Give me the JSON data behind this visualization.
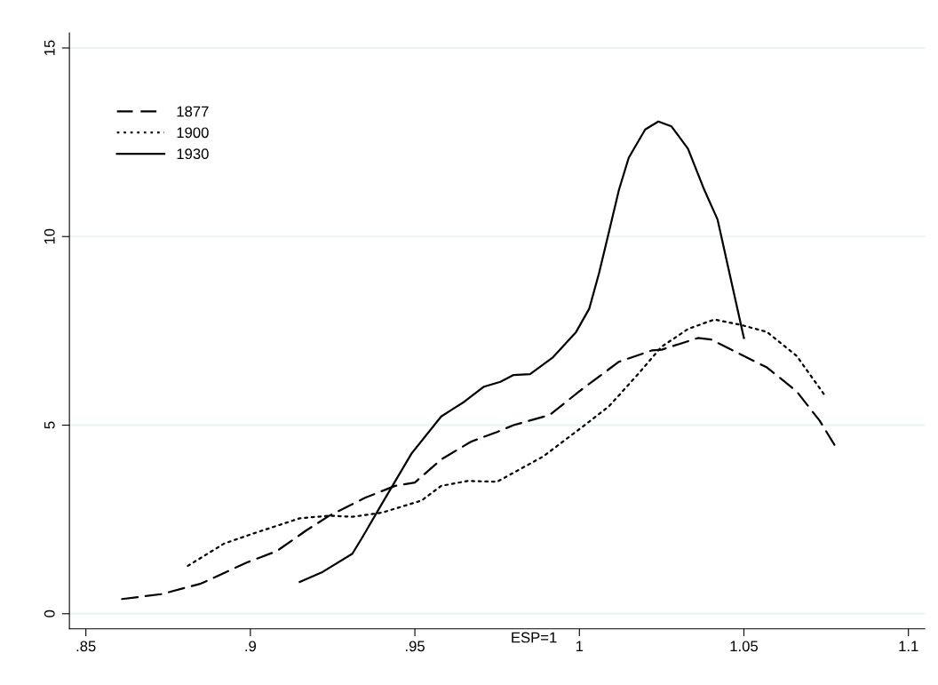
{
  "chart_data": {
    "type": "line",
    "annotations": [
      "ESP=1"
    ],
    "xlim": [
      0.845,
      1.105
    ],
    "xticks": [
      {
        "value": 0.85,
        "label": ".85"
      },
      {
        "value": 0.9,
        "label": ".9"
      },
      {
        "value": 0.95,
        "label": ".95"
      },
      {
        "value": 1.0,
        "label": "1"
      },
      {
        "value": 1.05,
        "label": "1.05"
      },
      {
        "value": 1.1,
        "label": "1.1"
      }
    ],
    "ylim": [
      -0.4,
      15.4
    ],
    "yticks": [
      0,
      5,
      10,
      15
    ],
    "grid": "y",
    "legend": "top left",
    "marker": "none",
    "series": [
      {
        "name": "1877",
        "color": "#000000",
        "line_style": "dashed",
        "x": [
          0.861,
          0.873,
          0.885,
          0.899,
          0.908,
          0.917,
          0.924,
          0.935,
          0.944,
          0.95,
          0.958,
          0.967,
          0.975,
          0.98,
          0.991,
          1.0,
          1.012,
          1.022,
          1.025,
          1.036,
          1.04,
          1.048,
          1.057,
          1.066,
          1.073,
          1.078
        ],
        "values": [
          0.39,
          0.52,
          0.8,
          1.36,
          1.66,
          2.21,
          2.6,
          3.08,
          3.39,
          3.48,
          4.09,
          4.56,
          4.82,
          5.0,
          5.27,
          5.9,
          6.68,
          6.98,
          7.0,
          7.31,
          7.27,
          6.92,
          6.53,
          5.9,
          5.12,
          4.41
        ]
      },
      {
        "name": "1900",
        "color": "#000000",
        "line_style": "dotted",
        "x": [
          0.881,
          0.892,
          0.901,
          0.915,
          0.924,
          0.931,
          0.94,
          0.952,
          0.958,
          0.966,
          0.975,
          0.989,
          1.001,
          1.009,
          1.018,
          1.025,
          1.033,
          1.041,
          1.049,
          1.057,
          1.066,
          1.075
        ],
        "values": [
          1.27,
          1.86,
          2.13,
          2.53,
          2.6,
          2.57,
          2.68,
          3.0,
          3.39,
          3.52,
          3.5,
          4.17,
          4.96,
          5.5,
          6.37,
          7.08,
          7.55,
          7.8,
          7.66,
          7.47,
          6.84,
          5.74
        ]
      },
      {
        "name": "1930",
        "color": "#000000",
        "line_style": "solid",
        "x": [
          0.915,
          0.922,
          0.931,
          0.934,
          0.94,
          0.949,
          0.958,
          0.965,
          0.971,
          0.976,
          0.98,
          0.985,
          0.992,
          0.999,
          1.003,
          1.006,
          1.009,
          1.012,
          1.015,
          1.02,
          1.024,
          1.028,
          1.033,
          1.038,
          1.042,
          1.045,
          1.05
        ],
        "values": [
          0.84,
          1.11,
          1.59,
          2.02,
          2.92,
          4.25,
          5.23,
          5.62,
          6.02,
          6.15,
          6.33,
          6.35,
          6.8,
          7.47,
          8.09,
          9.04,
          10.13,
          11.23,
          12.09,
          12.84,
          13.05,
          12.92,
          12.33,
          11.23,
          10.45,
          9.27,
          7.31
        ]
      }
    ]
  }
}
